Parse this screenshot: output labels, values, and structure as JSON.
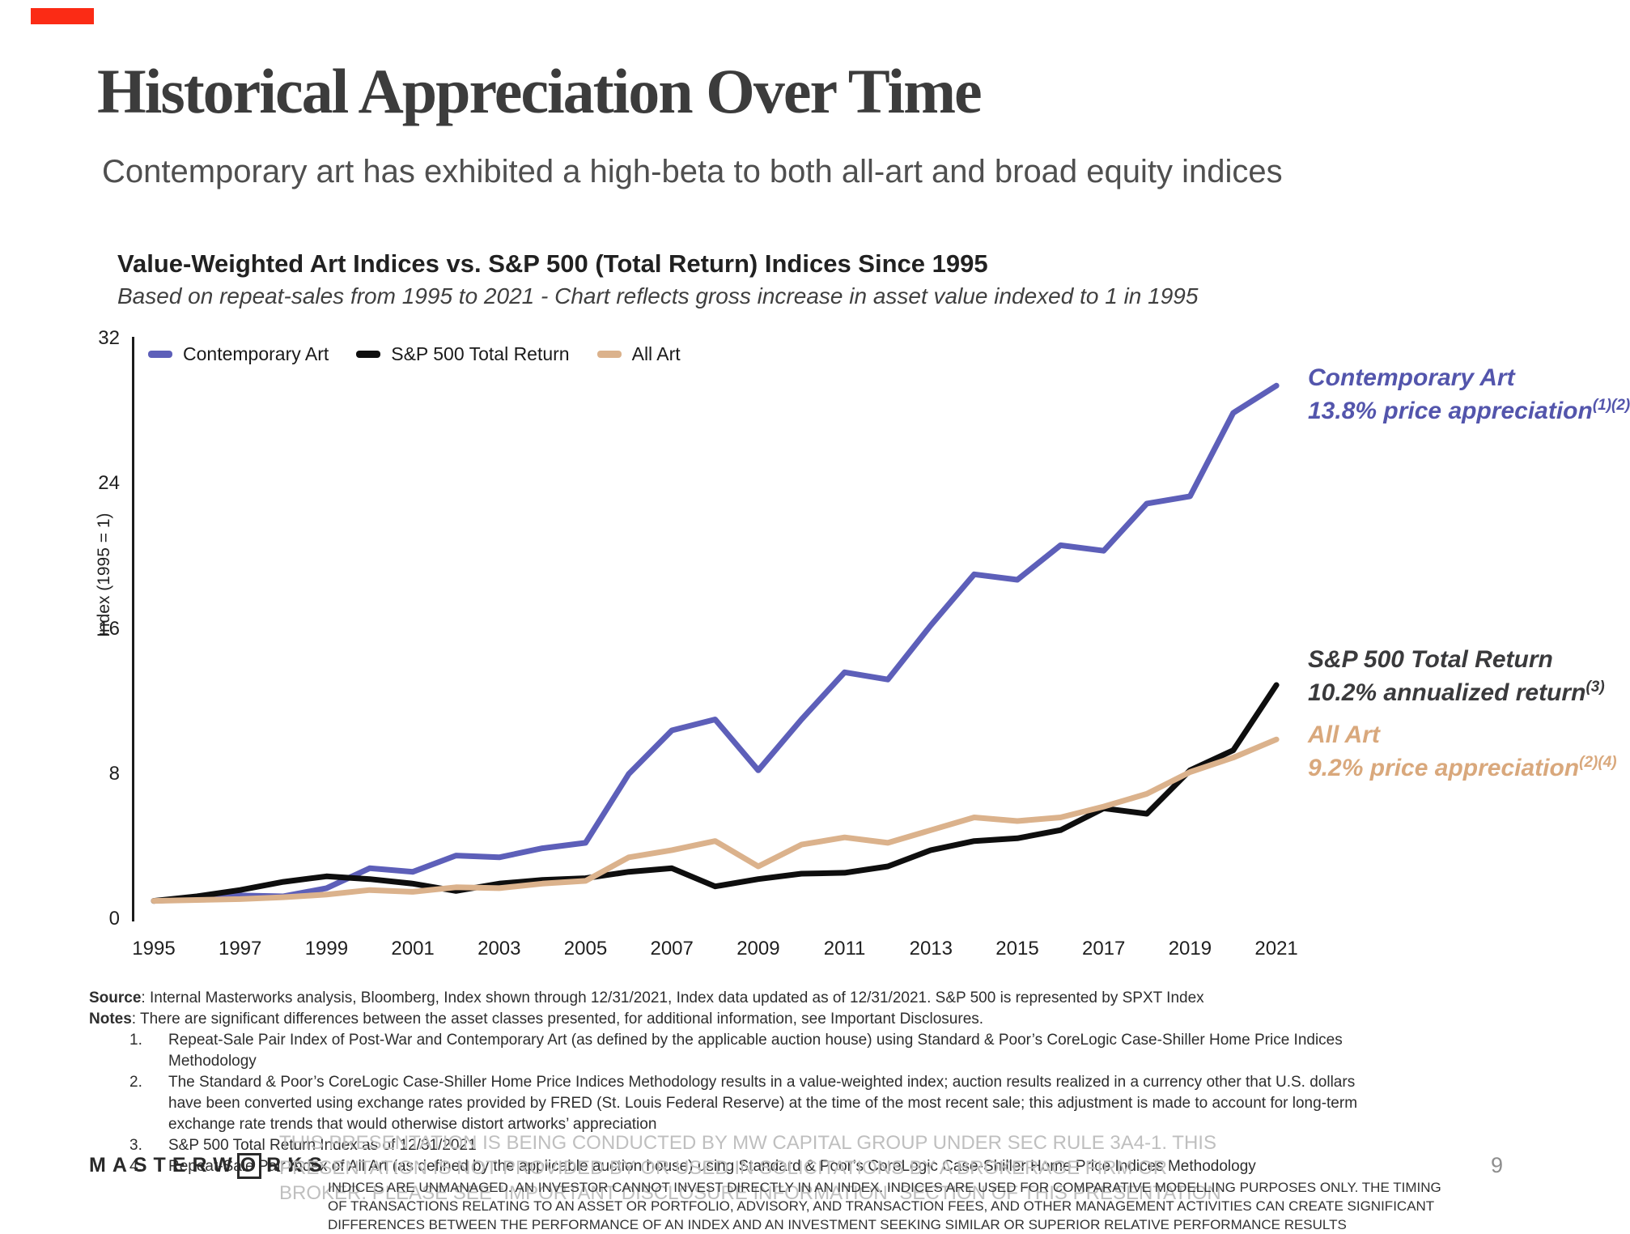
{
  "slide": {
    "title": "Historical Appreciation Over Time",
    "subtitle": "Contemporary art has exhibited a high-beta to both all-art and broad equity indices",
    "accent_color": "#FB2B15",
    "page_number": "9"
  },
  "chart": {
    "title": "Value-Weighted Art Indices vs. S&P 500 (Total Return) Indices Since 1995",
    "subtitle": "Based on repeat-sales from 1995 to 2021 - Chart reflects gross increase in asset value indexed to 1 in 1995",
    "y_axis_label": "Index (1995 = 1)"
  },
  "chart_data": {
    "type": "line",
    "title": "Value-Weighted Art Indices vs. S&P 500 (Total Return) Indices Since 1995",
    "xlabel": "",
    "ylabel": "Index (1995 = 1)",
    "ylim": [
      0,
      32
    ],
    "y_ticks": [
      0,
      8,
      16,
      24,
      32
    ],
    "grid": false,
    "legend_position": "top-left",
    "x": [
      1995,
      1996,
      1997,
      1998,
      1999,
      2000,
      2001,
      2002,
      2003,
      2004,
      2005,
      2006,
      2007,
      2008,
      2009,
      2010,
      2011,
      2012,
      2013,
      2014,
      2015,
      2016,
      2017,
      2018,
      2019,
      2020,
      2021
    ],
    "x_tick_labels": [
      "1995",
      "1997",
      "1999",
      "2001",
      "2003",
      "2005",
      "2007",
      "2009",
      "2011",
      "2013",
      "2015",
      "2017",
      "2019",
      "2021"
    ],
    "series": [
      {
        "name": "Contemporary Art",
        "color": "#5D5FB9",
        "values": [
          1.0,
          1.1,
          1.3,
          1.25,
          1.7,
          2.8,
          2.6,
          3.5,
          3.4,
          3.9,
          4.2,
          8.0,
          10.4,
          11.0,
          8.2,
          11.0,
          13.6,
          13.2,
          16.2,
          19.0,
          18.7,
          20.6,
          20.3,
          22.9,
          23.3,
          27.9,
          29.4
        ]
      },
      {
        "name": "S&P 500 Total Return",
        "color": "#0e0e0e",
        "values": [
          1.0,
          1.25,
          1.6,
          2.05,
          2.35,
          2.2,
          1.95,
          1.55,
          1.95,
          2.15,
          2.25,
          2.6,
          2.8,
          1.8,
          2.2,
          2.5,
          2.55,
          2.9,
          3.8,
          4.3,
          4.45,
          4.9,
          6.1,
          5.8,
          8.2,
          9.3,
          12.9
        ]
      },
      {
        "name": "All Art",
        "color": "#DBB28C",
        "values": [
          1.0,
          1.05,
          1.1,
          1.2,
          1.35,
          1.6,
          1.5,
          1.75,
          1.7,
          1.95,
          2.1,
          3.4,
          3.8,
          4.3,
          2.9,
          4.1,
          4.5,
          4.2,
          4.9,
          5.6,
          5.4,
          5.6,
          6.2,
          6.9,
          8.1,
          8.9,
          9.9
        ]
      }
    ]
  },
  "annotations": [
    {
      "line1": "Contemporary Art",
      "line2": "13.8% price appreciation",
      "sup": "(1)(2)",
      "color": "#5355AC"
    },
    {
      "line1": "S&P 500 Total Return",
      "line2": "10.2% annualized return",
      "sup": "(3)",
      "color": "#3A3A3C"
    },
    {
      "line1": "All Art",
      "line2": "9.2% price appreciation",
      "sup": "(2)(4)",
      "color": "#D9A87C"
    }
  ],
  "footnotes": {
    "source_label": "Source",
    "source_text": ": Internal Masterworks analysis, Bloomberg, Index shown through 12/31/2021, Index data updated as of 12/31/2021. S&P 500 is represented by SPXT Index",
    "notes_label": "Notes",
    "notes_text": ": There are significant differences between the asset classes presented, for additional information, see Important Disclosures.",
    "items": [
      "Repeat-Sale Pair Index of Post-War and Contemporary Art (as defined by the applicable auction house) using Standard & Poor’s CoreLogic Case-Shiller Home Price Indices Methodology",
      "The Standard & Poor’s CoreLogic Case-Shiller Home Price Indices Methodology results in a value-weighted index; auction results realized in a currency other that U.S. dollars have been converted using exchange rates provided by FRED (St. Louis Federal Reserve) at the time of the most recent sale; this adjustment is made to account for long-term exchange rate trends that would otherwise distort artworks’ appreciation",
      "S&P 500 Total Return Index as of 12/31/2021",
      "Repeat-Sale Pair Index of All Art (as defined by the applicable auction house) using Standard & Poor’s CoreLogic Case-Shiller Home Price Indices Methodology"
    ]
  },
  "footer": {
    "logo_prefix": "MASTERW",
    "logo_o": "O",
    "logo_suffix": "RKS",
    "disclaimer_light": "THIS PRESENTATION IS BEING CONDUCTED BY MW CAPITAL GROUP UNDER SEC RULE 3A4-1. THIS PRESENTATION IS NOT PROVIDED BY OR USED IN SOLICITATIONS BY A BROKERAGE FIRM OR BROKER. PLEASE SEE “IMPORTANT DISCLOSURE INFORMATION” SECTION OF THIS PRESENTATION",
    "disclaimer_dark": "INDICES ARE UNMANAGED. AN INVESTOR CANNOT INVEST DIRECTLY IN AN INDEX. INDICES ARE USED FOR COMPARATIVE MODELLING PURPOSES ONLY. THE TIMING OF TRANSACTIONS RELATING TO AN ASSET OR PORTFOLIO, ADVISORY, AND TRANSACTION FEES, AND OTHER MANAGEMENT ACTIVITIES CAN CREATE SIGNIFICANT DIFFERENCES BETWEEN THE PERFORMANCE OF AN INDEX AND AN INVESTMENT SEEKING SIMILAR OR SUPERIOR RELATIVE PERFORMANCE RESULTS"
  }
}
